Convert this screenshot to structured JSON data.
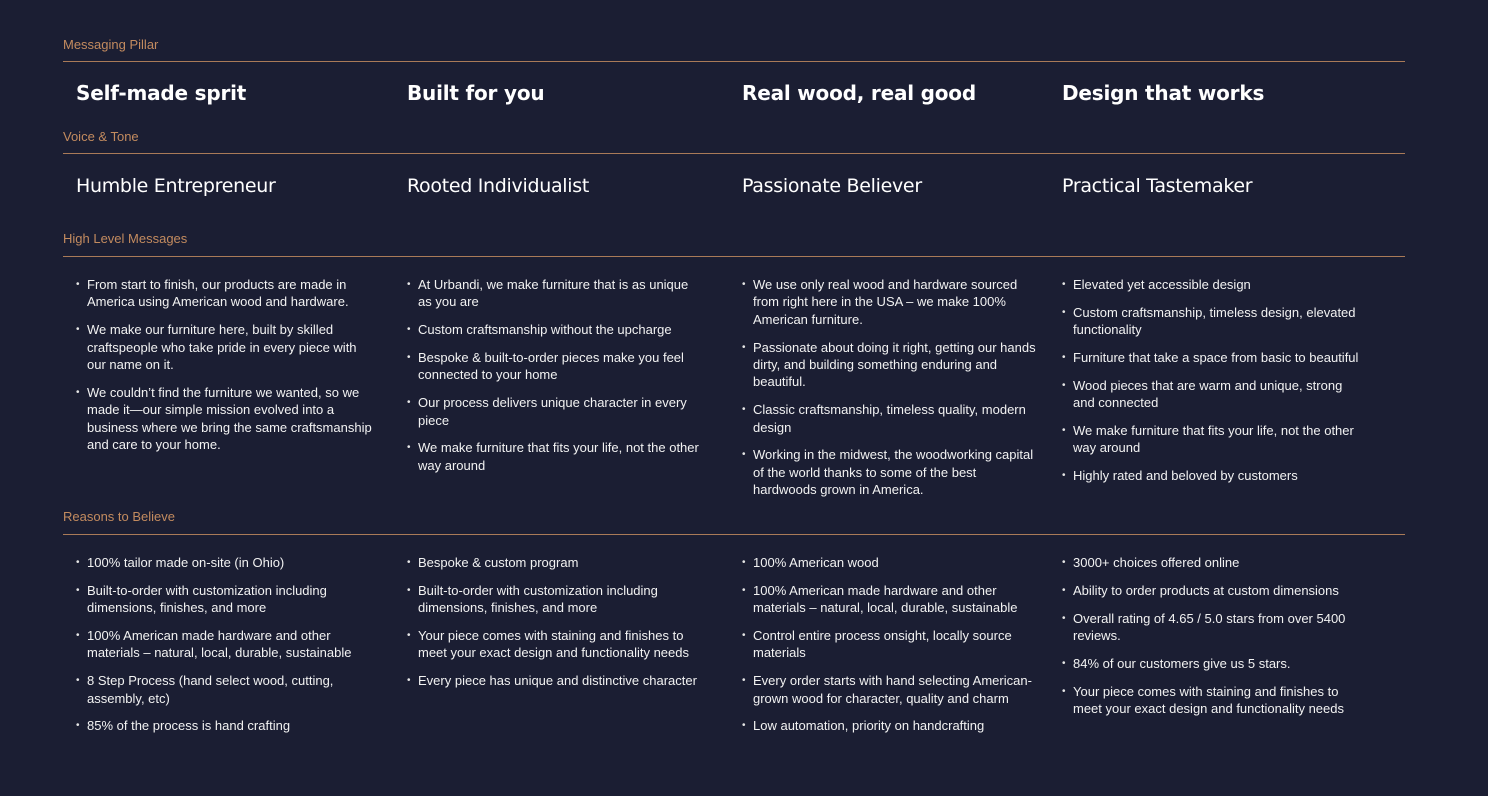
{
  "sections": {
    "pillar": {
      "label": "Messaging Pillar",
      "columns": [
        "Self-made sprit",
        "Built for you",
        "Real wood, real good",
        "Design that works"
      ]
    },
    "tone": {
      "label": "Voice & Tone",
      "columns": [
        "Humble Entrepreneur",
        "Rooted Individualist",
        "Passionate Believer",
        "Practical Tastemaker"
      ]
    },
    "messages": {
      "label": "High Level Messages",
      "columns": [
        [
          "From start to finish, our products are made in America using American wood and hardware.",
          "We make our furniture here, built by skilled craftspeople who take pride in every piece with our name on it.",
          "We couldn’t find the furniture we wanted, so we made it—our simple mission evolved into a business where we bring the same craftsmanship and care to your home."
        ],
        [
          "At Urbandi, we make furniture that is as unique as you are",
          "Custom craftsmanship without the upcharge",
          "Bespoke & built-to-order pieces make you feel connected to your home",
          "Our process delivers unique character in every piece",
          "We make furniture that fits your life, not the other way around"
        ],
        [
          "We use only real wood and hardware sourced from right here in the USA – we make 100% American furniture.",
          "Passionate about doing it right, getting our hands dirty, and building something enduring and beautiful.",
          "Classic craftsmanship, timeless quality, modern design",
          "Working in the midwest, the woodworking capital of the world thanks to some of the best hardwoods grown in America."
        ],
        [
          "Elevated yet accessible design",
          "Custom craftsmanship, timeless design, elevated functionality",
          "Furniture that take a space from basic to beautiful",
          "Wood pieces that are warm and unique, strong and connected",
          "We make furniture that fits your life, not the other way around",
          "Highly rated and beloved by customers"
        ]
      ]
    },
    "reasons": {
      "label": "Reasons to Believe",
      "columns": [
        [
          "100% tailor made on-site (in Ohio)",
          "Built-to-order with customization including dimensions, finishes, and more",
          "100% American made hardware and other materials – natural, local, durable, sustainable",
          "8 Step Process (hand select wood, cutting, assembly, etc)",
          "85% of the process is hand crafting"
        ],
        [
          "Bespoke & custom program",
          "Built-to-order with customization including dimensions, finishes, and more",
          "Your piece comes with staining and finishes to meet your exact design and functionality needs",
          "Every piece has unique and distinctive character"
        ],
        [
          "100% American wood",
          "100% American made hardware and other materials – natural, local, durable, sustainable",
          "Control entire process onsight, locally source materials",
          "Every order starts with hand selecting American-grown wood for character, quality and charm",
          "Low automation, priority on handcrafting"
        ],
        [
          "3000+ choices offered online",
          "Ability to order products at custom dimensions",
          "Overall rating of 4.65 / 5.0 stars from over 5400 reviews.",
          "84% of our customers give us 5 stars.",
          "Your piece comes with staining and finishes to meet your exact design and functionality needs"
        ]
      ]
    }
  },
  "colors": {
    "background": "#1b1e33",
    "accent": "#c38b5f",
    "text": "#f2f2f2"
  }
}
